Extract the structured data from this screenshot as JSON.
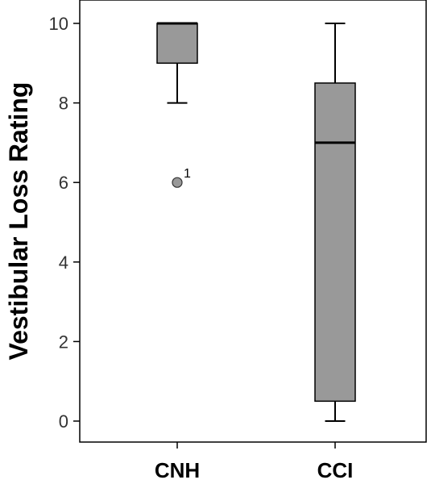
{
  "chart_data": {
    "type": "boxplot",
    "title": "",
    "xlabel": "",
    "ylabel": "Vestibular Loss Rating",
    "ylim": [
      0,
      10
    ],
    "yticks": [
      0,
      2,
      4,
      6,
      8,
      10
    ],
    "categories": [
      "CNH",
      "CCI"
    ],
    "boxes": [
      {
        "category": "CNH",
        "whisker_low": 8,
        "q1": 9,
        "median": 10,
        "q3": 10,
        "whisker_high": 10,
        "outliers": [
          {
            "value": 6,
            "label": "1"
          }
        ]
      },
      {
        "category": "CCI",
        "whisker_low": 0,
        "q1": 0.5,
        "median": 7,
        "q3": 8.5,
        "whisker_high": 10,
        "outliers": []
      }
    ],
    "box_color": "#999999",
    "grid": false,
    "legend": "none"
  }
}
